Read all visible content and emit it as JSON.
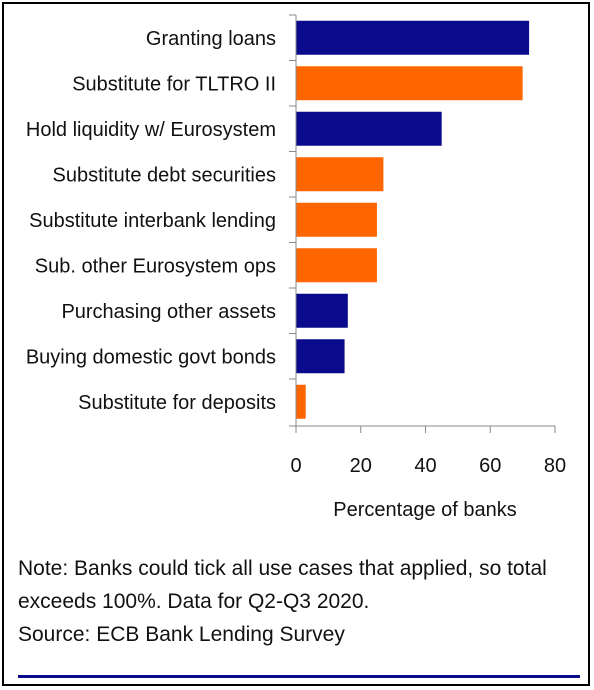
{
  "chart_data": {
    "type": "bar",
    "orientation": "horizontal",
    "categories": [
      "Granting loans",
      "Substitute for TLTRO II",
      "Hold liquidity w/ Eurosystem",
      "Substitute debt securities",
      "Substitute interbank lending",
      "Sub. other Eurosystem ops",
      "Purchasing other assets",
      "Buying domestic govt bonds",
      "Substitute for deposits"
    ],
    "values": [
      72,
      70,
      45,
      27,
      25,
      25,
      16,
      15,
      3
    ],
    "bar_colors": [
      "#0a0a8c",
      "#ff6600",
      "#0a0a8c",
      "#ff6600",
      "#ff6600",
      "#ff6600",
      "#0a0a8c",
      "#0a0a8c",
      "#ff6600"
    ],
    "xlabel": "Percentage of banks",
    "xlim": [
      0,
      80
    ],
    "xticks": [
      "0",
      "20",
      "40",
      "60",
      "80"
    ],
    "grid": false,
    "legend": "none"
  },
  "note": {
    "line1": "Note: Banks could tick all use cases that applied, so total",
    "line2": "exceeds 100%. Data for Q2-Q3 2020.",
    "line3": "Source: ECB Bank Lending Survey"
  },
  "colors": {
    "accent_navy": "#0a0a8c",
    "accent_orange": "#ff6600",
    "rule": "#0a0a8c"
  }
}
